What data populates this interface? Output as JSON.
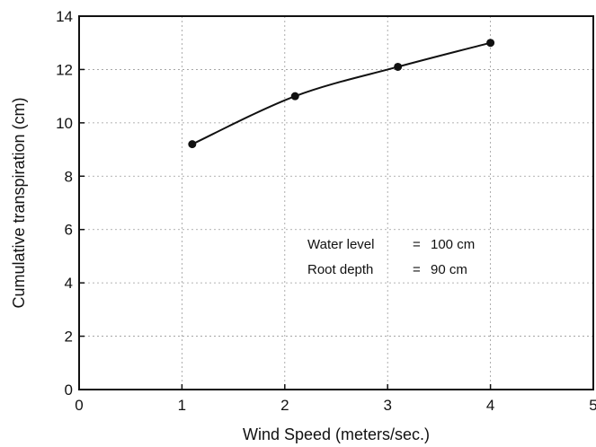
{
  "chart_data": {
    "type": "line",
    "title": "",
    "xlabel": "Wind Speed (meters/sec.)",
    "ylabel": "Cumulative transpiration (cm)",
    "xlim": [
      0,
      5
    ],
    "ylim": [
      0,
      14
    ],
    "x_ticks": [
      "0",
      "1",
      "2",
      "3",
      "4",
      "5"
    ],
    "y_ticks": [
      "0",
      "2",
      "4",
      "6",
      "8",
      "10",
      "12",
      "14"
    ],
    "grid": true,
    "series": [
      {
        "x": [
          1.1,
          2.1,
          3.1,
          4.0
        ],
        "y": [
          9.2,
          11.0,
          12.1,
          13.0
        ],
        "marker": "circle",
        "line": "smooth",
        "color": "#111111"
      }
    ],
    "annotations": [
      {
        "label": "Water level",
        "eq": "=",
        "value": "100 cm"
      },
      {
        "label": "Root depth",
        "eq": "=",
        "value": "90 cm"
      }
    ]
  }
}
